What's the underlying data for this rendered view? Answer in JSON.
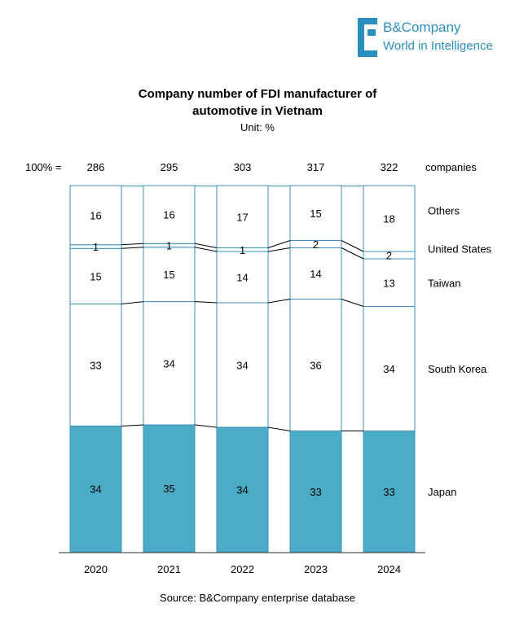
{
  "brand": {
    "name": "B&Company",
    "tagline": "World in Intelligence",
    "color": "#2a8fbf"
  },
  "chart_data": {
    "type": "bar",
    "stacked_percent": true,
    "title_line1": "Company number of FDI manufacturer of",
    "title_line2": "automotive in Vietnam",
    "unit": "Unit: %",
    "total_prefix": "100% =",
    "total_suffix": "companies",
    "categories": [
      "2020",
      "2021",
      "2022",
      "2023",
      "2024"
    ],
    "totals": [
      286,
      295,
      303,
      317,
      322
    ],
    "series": [
      {
        "name": "Japan",
        "values": [
          34,
          35,
          34,
          33,
          33
        ],
        "color": "#4bacc6"
      },
      {
        "name": "South Korea",
        "values": [
          33,
          34,
          34,
          36,
          34
        ],
        "color": "#ffffff"
      },
      {
        "name": "Taiwan",
        "values": [
          15,
          15,
          14,
          14,
          13
        ],
        "color": "#ffffff"
      },
      {
        "name": "United States",
        "values": [
          1,
          1,
          1,
          2,
          2
        ],
        "color": "#ffffff"
      },
      {
        "name": "Others",
        "values": [
          16,
          16,
          17,
          15,
          18
        ],
        "color": "#ffffff"
      }
    ],
    "ylim": [
      0,
      100
    ],
    "source": "Source: B&Company enterprise database",
    "outline_color": "#3b8fb8"
  }
}
